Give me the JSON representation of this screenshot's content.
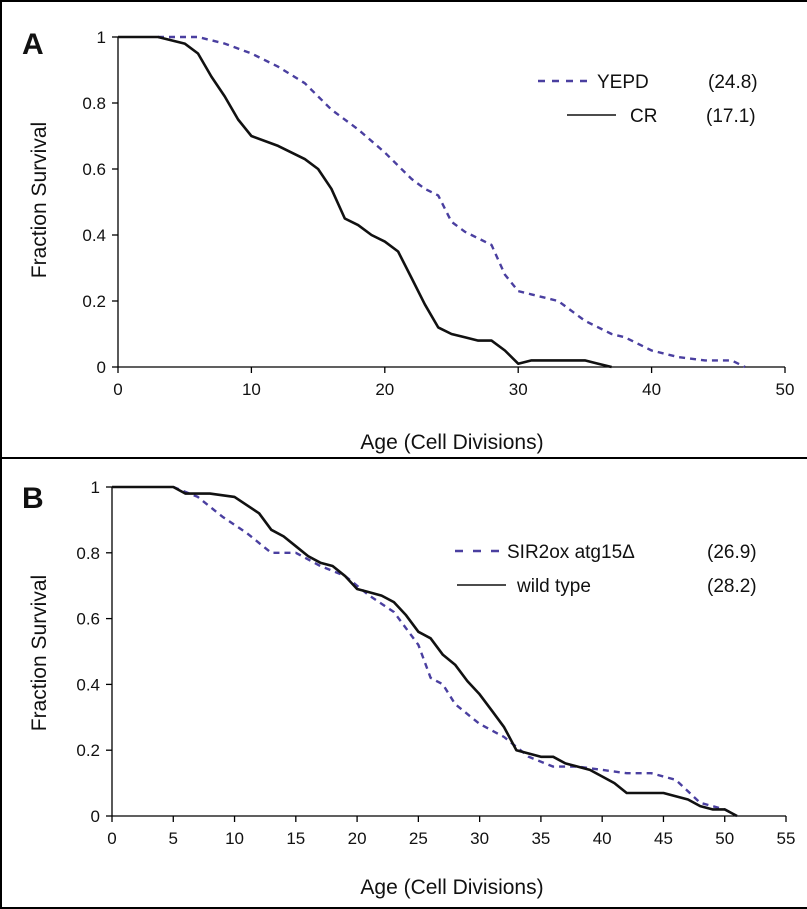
{
  "chart_data": [
    {
      "type": "line",
      "panel_label": "A",
      "xlabel": "Age (Cell Divisions)",
      "ylabel": "Fraction Survival",
      "xlim": [
        0,
        50
      ],
      "ylim": [
        0,
        1
      ],
      "xticks": [
        "0",
        "10",
        "20",
        "30",
        "40",
        "50"
      ],
      "yticks": [
        "0",
        "0.2",
        "0.4",
        "0.6",
        "0.8",
        "1"
      ],
      "grid": false,
      "legend_position": "top-right",
      "series": [
        {
          "name": "YEPD",
          "value_label": "(24.8)",
          "style": "dashed",
          "color": "#4a3fa0",
          "x": [
            3,
            6,
            8,
            10,
            12,
            14,
            16,
            18,
            20,
            22,
            23,
            24,
            25,
            26,
            27,
            28,
            29,
            30,
            31,
            33,
            35,
            37,
            38,
            40,
            42,
            44,
            46,
            47
          ],
          "y": [
            1,
            1,
            0.98,
            0.95,
            0.91,
            0.86,
            0.78,
            0.72,
            0.65,
            0.57,
            0.54,
            0.52,
            0.44,
            0.41,
            0.39,
            0.37,
            0.28,
            0.23,
            0.22,
            0.2,
            0.14,
            0.1,
            0.09,
            0.05,
            0.03,
            0.02,
            0.02,
            0
          ]
        },
        {
          "name": "CR",
          "value_label": "(17.1)",
          "style": "solid",
          "color": "#111111",
          "x": [
            0,
            3,
            5,
            6,
            7,
            8,
            9,
            10,
            12,
            14,
            15,
            16,
            17,
            18,
            19,
            20,
            21,
            22,
            23,
            24,
            25,
            26,
            27,
            28,
            29,
            30,
            31,
            33,
            35,
            36,
            37
          ],
          "y": [
            1,
            1,
            0.98,
            0.95,
            0.88,
            0.82,
            0.75,
            0.7,
            0.67,
            0.63,
            0.6,
            0.54,
            0.45,
            0.43,
            0.4,
            0.38,
            0.35,
            0.27,
            0.19,
            0.12,
            0.1,
            0.09,
            0.08,
            0.08,
            0.05,
            0.01,
            0.02,
            0.02,
            0.02,
            0.01,
            0
          ]
        }
      ]
    },
    {
      "type": "line",
      "panel_label": "B",
      "xlabel": "Age (Cell Divisions)",
      "ylabel": "Fraction Survival",
      "xlim": [
        0,
        55
      ],
      "ylim": [
        0,
        1
      ],
      "xticks": [
        "0",
        "5",
        "10",
        "15",
        "20",
        "25",
        "30",
        "35",
        "40",
        "45",
        "50",
        "55"
      ],
      "yticks": [
        "0",
        "0.2",
        "0.4",
        "0.6",
        "0.8",
        "1"
      ],
      "grid": false,
      "legend_position": "top-right",
      "series": [
        {
          "name": "SIR2ox atg15Δ",
          "value_label": "(26.9)",
          "style": "dashed",
          "color": "#4a3fa0",
          "x": [
            5,
            7,
            9,
            11,
            13,
            15,
            17,
            19,
            21,
            23,
            25,
            26,
            27,
            28,
            30,
            32,
            34,
            36,
            38,
            40,
            42,
            44,
            46,
            48,
            50,
            51
          ],
          "y": [
            1,
            0.97,
            0.91,
            0.86,
            0.8,
            0.8,
            0.76,
            0.73,
            0.67,
            0.62,
            0.52,
            0.42,
            0.4,
            0.34,
            0.28,
            0.24,
            0.18,
            0.15,
            0.15,
            0.14,
            0.13,
            0.13,
            0.11,
            0.04,
            0.02,
            0
          ]
        },
        {
          "name": "wild type",
          "value_label": "(28.2)",
          "style": "solid",
          "color": "#111111",
          "x": [
            0,
            5,
            6,
            8,
            10,
            12,
            13,
            14,
            15,
            16,
            17,
            18,
            19,
            20,
            21,
            22,
            23,
            24,
            25,
            26,
            27,
            28,
            29,
            30,
            31,
            32,
            33,
            34,
            35,
            36,
            37,
            38,
            39,
            40,
            41,
            42,
            43,
            44,
            45,
            46,
            47,
            48,
            49,
            50,
            51
          ],
          "y": [
            1,
            1,
            0.98,
            0.98,
            0.97,
            0.92,
            0.87,
            0.85,
            0.82,
            0.79,
            0.77,
            0.76,
            0.73,
            0.69,
            0.68,
            0.67,
            0.65,
            0.61,
            0.56,
            0.54,
            0.49,
            0.46,
            0.41,
            0.37,
            0.32,
            0.27,
            0.2,
            0.19,
            0.18,
            0.18,
            0.16,
            0.15,
            0.14,
            0.12,
            0.1,
            0.07,
            0.07,
            0.07,
            0.07,
            0.06,
            0.05,
            0.03,
            0.02,
            0.02,
            0
          ]
        }
      ]
    }
  ]
}
